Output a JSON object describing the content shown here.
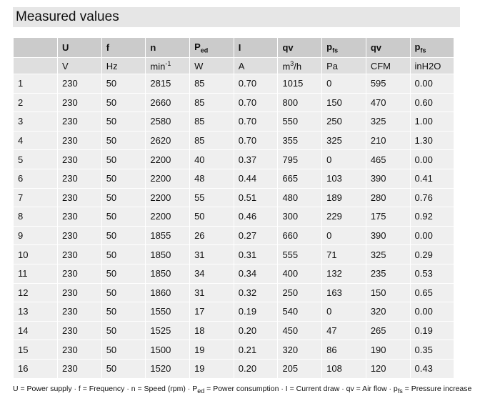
{
  "title": "Measured values",
  "table": {
    "header": [
      {
        "text": "U"
      },
      {
        "text": "f"
      },
      {
        "text": "n"
      },
      {
        "text": "P",
        "sub": "ed"
      },
      {
        "text": "I"
      },
      {
        "text": "qv"
      },
      {
        "text": "p",
        "sub": "fs"
      },
      {
        "text": "qv"
      },
      {
        "text": "p",
        "sub": "fs"
      }
    ],
    "units": [
      {
        "text": "V"
      },
      {
        "text": "Hz"
      },
      {
        "text": "min",
        "sup": "-1"
      },
      {
        "text": "W"
      },
      {
        "text": "A"
      },
      {
        "text": "m",
        "sup": "3",
        "after": "/h"
      },
      {
        "text": "Pa"
      },
      {
        "text": "CFM"
      },
      {
        "text": "inH2O"
      }
    ],
    "rows": [
      [
        "1",
        "230",
        "50",
        "2815",
        "85",
        "0.70",
        "1015",
        "0",
        "595",
        "0.00"
      ],
      [
        "2",
        "230",
        "50",
        "2660",
        "85",
        "0.70",
        "800",
        "150",
        "470",
        "0.60"
      ],
      [
        "3",
        "230",
        "50",
        "2580",
        "85",
        "0.70",
        "550",
        "250",
        "325",
        "1.00"
      ],
      [
        "4",
        "230",
        "50",
        "2620",
        "85",
        "0.70",
        "355",
        "325",
        "210",
        "1.30"
      ],
      [
        "5",
        "230",
        "50",
        "2200",
        "40",
        "0.37",
        "795",
        "0",
        "465",
        "0.00"
      ],
      [
        "6",
        "230",
        "50",
        "2200",
        "48",
        "0.44",
        "665",
        "103",
        "390",
        "0.41"
      ],
      [
        "7",
        "230",
        "50",
        "2200",
        "55",
        "0.51",
        "480",
        "189",
        "280",
        "0.76"
      ],
      [
        "8",
        "230",
        "50",
        "2200",
        "50",
        "0.46",
        "300",
        "229",
        "175",
        "0.92"
      ],
      [
        "9",
        "230",
        "50",
        "1855",
        "26",
        "0.27",
        "660",
        "0",
        "390",
        "0.00"
      ],
      [
        "10",
        "230",
        "50",
        "1850",
        "31",
        "0.31",
        "555",
        "71",
        "325",
        "0.29"
      ],
      [
        "11",
        "230",
        "50",
        "1850",
        "34",
        "0.34",
        "400",
        "132",
        "235",
        "0.53"
      ],
      [
        "12",
        "230",
        "50",
        "1860",
        "31",
        "0.32",
        "250",
        "163",
        "150",
        "0.65"
      ],
      [
        "13",
        "230",
        "50",
        "1550",
        "17",
        "0.19",
        "540",
        "0",
        "320",
        "0.00"
      ],
      [
        "14",
        "230",
        "50",
        "1525",
        "18",
        "0.20",
        "450",
        "47",
        "265",
        "0.19"
      ],
      [
        "15",
        "230",
        "50",
        "1500",
        "19",
        "0.21",
        "320",
        "86",
        "190",
        "0.35"
      ],
      [
        "16",
        "230",
        "50",
        "1520",
        "19",
        "0.20",
        "205",
        "108",
        "120",
        "0.43"
      ]
    ]
  },
  "footnote": [
    {
      "text": "U = Power supply · f = Frequency · n = Speed (rpm) · P"
    },
    {
      "sub": "ed"
    },
    {
      "text": " = Power consumption · I = Current draw · qv = Air flow · p"
    },
    {
      "sub": "fs"
    },
    {
      "text": " = Pressure increase"
    }
  ]
}
